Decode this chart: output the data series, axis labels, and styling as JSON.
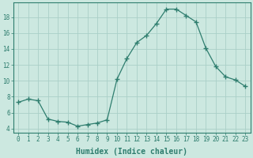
{
  "x": [
    0,
    1,
    2,
    3,
    4,
    5,
    6,
    7,
    8,
    9,
    10,
    11,
    12,
    13,
    14,
    15,
    16,
    17,
    18,
    19,
    20,
    21,
    22,
    23
  ],
  "y": [
    7.3,
    7.7,
    7.5,
    5.2,
    4.9,
    4.8,
    4.3,
    4.5,
    4.7,
    5.1,
    10.2,
    12.8,
    14.8,
    15.7,
    17.2,
    19.0,
    19.0,
    18.2,
    17.4,
    14.1,
    11.8,
    10.5,
    10.1,
    9.3
  ],
  "line_color": "#2e7d6e",
  "marker": "+",
  "marker_size": 4,
  "bg_color": "#cce8e0",
  "grid_color": "#aacfc8",
  "xlabel": "Humidex (Indice chaleur)",
  "xlabel_fontsize": 7,
  "ylabel_ticks": [
    4,
    6,
    8,
    10,
    12,
    14,
    16,
    18
  ],
  "xlim": [
    -0.5,
    23.5
  ],
  "ylim": [
    3.5,
    19.8
  ],
  "xtick_labels": [
    "0",
    "1",
    "2",
    "3",
    "4",
    "5",
    "6",
    "7",
    "8",
    "9",
    "10",
    "11",
    "12",
    "13",
    "14",
    "15",
    "16",
    "17",
    "18",
    "19",
    "20",
    "21",
    "22",
    "23"
  ],
  "tick_fontsize": 5.5,
  "spine_color": "#2e7d6e"
}
